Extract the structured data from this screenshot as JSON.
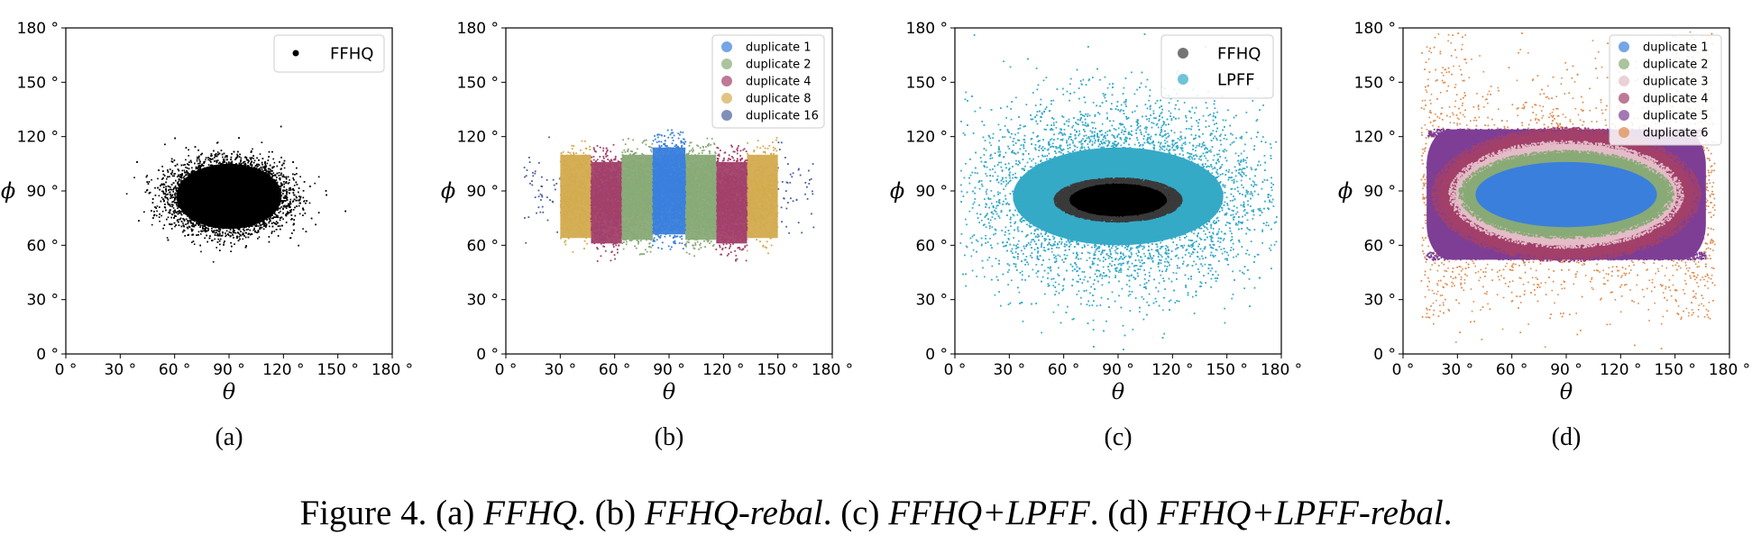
{
  "caption": {
    "prefix": "Figure 4.",
    "parts": [
      {
        "label": "(a)",
        "name": "FFHQ"
      },
      {
        "label": "(b)",
        "name": "FFHQ-rebal"
      },
      {
        "label": "(c)",
        "name": "FFHQ+LPFF"
      },
      {
        "label": "(d)",
        "name": "FFHQ+LPFF-rebal"
      }
    ]
  },
  "chart_data": [
    {
      "type": "scatter",
      "panel_label": "(a)",
      "xlabel": "θ",
      "ylabel": "ϕ",
      "xlim": [
        0,
        180
      ],
      "ylim": [
        0,
        180
      ],
      "xticks": [
        0,
        30,
        60,
        90,
        120,
        150,
        180
      ],
      "yticks": [
        0,
        30,
        60,
        90,
        120,
        150,
        180
      ],
      "tick_labels": [
        "0 °",
        "30 °",
        "60 °",
        "90 °",
        "120 °",
        "150 °",
        "180 °"
      ],
      "legend_position": "top-right",
      "legend_size": "large",
      "series": [
        {
          "name": "FFHQ",
          "color": "#000000",
          "distribution": "gaussian",
          "center": [
            90,
            87
          ],
          "spread": [
            15,
            9
          ],
          "x_range": [
            10,
            170
          ],
          "y_range": [
            50,
            135
          ],
          "count": 14000,
          "core_ellipse": [
            90,
            87,
            29,
            18
          ]
        }
      ]
    },
    {
      "type": "scatter",
      "panel_label": "(b)",
      "xlabel": "θ",
      "ylabel": "ϕ",
      "xlim": [
        0,
        180
      ],
      "ylim": [
        0,
        180
      ],
      "xticks": [
        0,
        30,
        60,
        90,
        120,
        150,
        180
      ],
      "yticks": [
        0,
        30,
        60,
        90,
        120,
        150,
        180
      ],
      "tick_labels": [
        "0 °",
        "30 °",
        "60 °",
        "90 °",
        "120 °",
        "150 °",
        "180 °"
      ],
      "legend_position": "top-right",
      "legend_size": "small",
      "series": [
        {
          "name": "duplicate 1",
          "color": "#3a7fdc",
          "distribution": "bands",
          "x_bands": [
            [
              81,
              99
            ]
          ],
          "y_range": [
            60,
            122
          ],
          "count": 2000
        },
        {
          "name": "duplicate 2",
          "color": "#88aa76",
          "distribution": "bands",
          "x_bands": [
            [
              64,
              81
            ],
            [
              99,
              116
            ]
          ],
          "y_range": [
            57,
            118
          ],
          "count": 2600
        },
        {
          "name": "duplicate 4",
          "color": "#a2406a",
          "distribution": "bands",
          "x_bands": [
            [
              47,
              64
            ],
            [
              116,
              133
            ]
          ],
          "y_range": [
            55,
            114
          ],
          "count": 2600
        },
        {
          "name": "duplicate 8",
          "color": "#d3ab4e",
          "distribution": "bands",
          "x_bands": [
            [
              30,
              47
            ],
            [
              133,
              150
            ]
          ],
          "y_range": [
            58,
            118
          ],
          "count": 1200
        },
        {
          "name": "duplicate 16",
          "color": "#4a5f9d",
          "distribution": "bands",
          "x_bands": [
            [
              10,
              30
            ],
            [
              150,
              170
            ]
          ],
          "y_range": [
            62,
            120
          ],
          "count": 90
        }
      ]
    },
    {
      "type": "scatter",
      "panel_label": "(c)",
      "xlabel": "θ",
      "ylabel": "ϕ",
      "xlim": [
        0,
        180
      ],
      "ylim": [
        0,
        180
      ],
      "xticks": [
        0,
        30,
        60,
        90,
        120,
        150,
        180
      ],
      "yticks": [
        0,
        30,
        60,
        90,
        120,
        150,
        180
      ],
      "tick_labels": [
        "0 °",
        "30 °",
        "60 °",
        "90 °",
        "120 °",
        "150 °",
        "180 °"
      ],
      "legend_position": "top-right",
      "legend_size": "large",
      "series": [
        {
          "name": "FFHQ",
          "color": "#3a3a3a",
          "distribution": "blob",
          "center": [
            90,
            85
          ],
          "radii": [
            32,
            11
          ],
          "count": 3500
        },
        {
          "name": "LPFF",
          "color": "#35aac7",
          "distribution": "gaussian",
          "center": [
            90,
            87
          ],
          "spread": [
            40,
            25
          ],
          "x_range": [
            3,
            178
          ],
          "y_range": [
            2,
            178
          ],
          "count": 14000,
          "core_ellipse": [
            90,
            87,
            58,
            27
          ]
        }
      ]
    },
    {
      "type": "scatter",
      "panel_label": "(d)",
      "xlabel": "θ",
      "ylabel": "ϕ",
      "xlim": [
        0,
        180
      ],
      "ylim": [
        0,
        180
      ],
      "xticks": [
        0,
        30,
        60,
        90,
        120,
        150,
        180
      ],
      "yticks": [
        0,
        30,
        60,
        90,
        120,
        150,
        180
      ],
      "tick_labels": [
        "0 °",
        "30 °",
        "60 °",
        "90 °",
        "120 °",
        "150 °",
        "180 °"
      ],
      "legend_position": "top-right",
      "legend_size": "small",
      "series": [
        {
          "name": "duplicate 1",
          "color": "#3a7fdc",
          "distribution": "ellipse",
          "center": [
            90,
            88
          ],
          "radii": [
            50,
            18
          ],
          "count": 0
        },
        {
          "name": "duplicate 2",
          "color": "#88aa76",
          "distribution": "ring",
          "center": [
            90,
            88
          ],
          "radii": [
            56,
            23
          ],
          "count": 1500
        },
        {
          "name": "duplicate 3",
          "color": "#e3bcc8",
          "distribution": "ring",
          "center": [
            90,
            88
          ],
          "radii": [
            61,
            28
          ],
          "count": 1500
        },
        {
          "name": "duplicate 4",
          "color": "#a2406a",
          "distribution": "ring",
          "center": [
            90,
            88
          ],
          "radii": [
            70,
            35
          ],
          "count": 2500
        },
        {
          "name": "duplicate 5",
          "color": "#7e3e95",
          "distribution": "box-ring",
          "center": [
            90,
            88
          ],
          "radii": [
            77,
            36
          ],
          "count": 1800
        },
        {
          "name": "duplicate 6",
          "color": "#e08a4b",
          "distribution": "outer",
          "x_range": [
            10,
            172
          ],
          "y_range": [
            3,
            178
          ],
          "count": 5000
        }
      ]
    }
  ]
}
